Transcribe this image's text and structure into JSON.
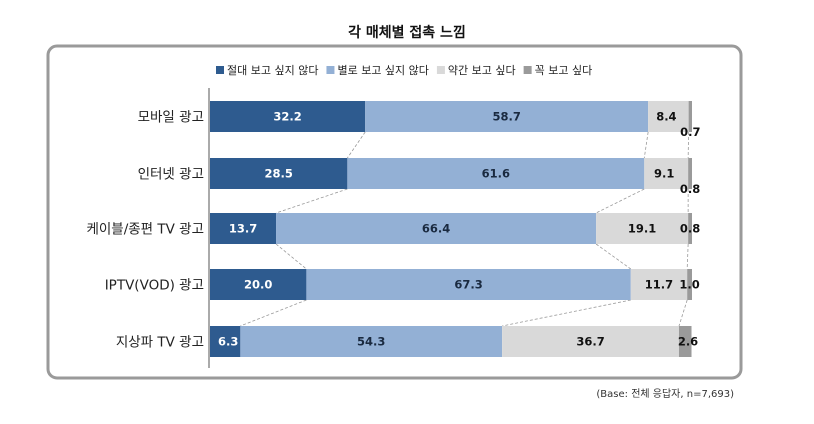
{
  "chart_data": {
    "type": "bar",
    "orientation": "horizontal",
    "stacked": true,
    "title": "각 매체별 접촉 느낌",
    "categories": [
      "모바일 광고",
      "인터넷 광고",
      "케이블/종편 TV 광고",
      "IPTV(VOD) 광고",
      "지상파 TV 광고"
    ],
    "series": [
      {
        "name": "절대 보고 싶지 않다",
        "color": "#2e5b8f",
        "text_color": "#ffffff",
        "values": [
          32.2,
          28.5,
          13.7,
          20.0,
          6.3
        ],
        "labels": [
          "32.2",
          "28.5",
          "13.7",
          "20.0",
          "6.3"
        ]
      },
      {
        "name": "별로 보고 싶지 않다",
        "color": "#93b0d5",
        "text_color": "#1a2a40",
        "values": [
          58.7,
          61.6,
          66.4,
          67.3,
          54.3
        ],
        "labels": [
          "58.7",
          "61.6",
          "66.4",
          "67.3",
          "54.3"
        ]
      },
      {
        "name": "약간 보고 싶다",
        "color": "#d9d9d9",
        "text_color": "#111111",
        "values": [
          8.4,
          9.1,
          19.1,
          11.7,
          36.7
        ],
        "labels": [
          "8.4",
          "9.1",
          "19.1",
          "11.7",
          "36.7"
        ]
      },
      {
        "name": "꼭 보고 싶다",
        "color": "#9a9a9a",
        "text_color": "#111111",
        "values": [
          0.7,
          0.8,
          0.8,
          1.0,
          2.6
        ],
        "labels": [
          "0.7",
          "0.8",
          "0.8",
          "1.0",
          "2.6"
        ]
      }
    ],
    "xlim": [
      0,
      100
    ],
    "legend_position": "top",
    "grid": false,
    "connector_lines": "dashed",
    "footnote": "(Base: 전체 응답자, n=7,693)"
  }
}
